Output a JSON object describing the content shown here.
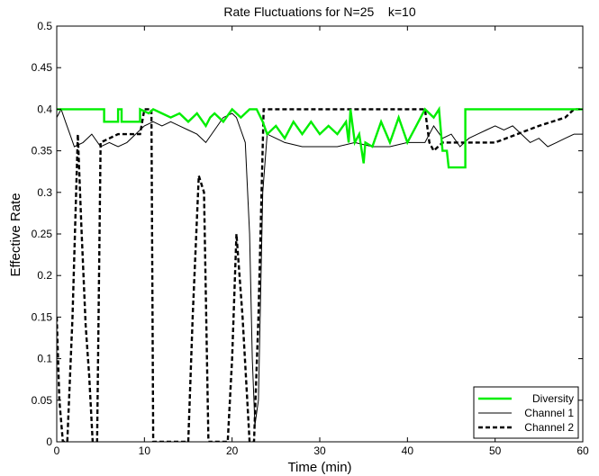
{
  "chart_data": {
    "type": "line",
    "title": "Rate Fluctuations for N=25    k=10",
    "xlabel": "Time (min)",
    "ylabel": "Effective Rate",
    "xlim": [
      0,
      60
    ],
    "ylim": [
      0,
      0.5
    ],
    "xticks": [
      0,
      10,
      20,
      30,
      40,
      50,
      60
    ],
    "xtick_labels": [
      "0",
      "10",
      "20",
      "30",
      "40",
      "50",
      "60"
    ],
    "yticks": [
      0,
      0.05,
      0.1,
      0.15,
      0.2,
      0.25,
      0.3,
      0.35,
      0.4,
      0.45,
      0.5
    ],
    "ytick_labels": [
      "0",
      "0.05",
      "0.1",
      "0.15",
      "0.2",
      "0.25",
      "0.3",
      "0.35",
      "0.4",
      "0.45",
      "0.5"
    ],
    "grid": false,
    "legend_position": "bottom-right",
    "series": [
      {
        "name": "Diversity",
        "color": "#00ee00",
        "style": "solid",
        "width": "thick",
        "x": [
          0,
          5.4,
          5.4,
          7,
          7,
          7.4,
          7.4,
          9.5,
          9.5,
          10.5,
          11,
          12,
          13,
          14,
          15,
          16,
          17,
          17.5,
          18,
          19,
          20,
          21,
          22,
          22.8,
          23.5,
          24,
          25,
          26,
          27,
          28,
          29,
          30,
          31,
          32,
          33,
          33.3,
          33.5,
          34,
          34.5,
          35,
          35.2,
          36,
          37,
          38,
          39,
          40,
          41,
          42,
          43,
          43.6,
          44,
          44.5,
          44.7,
          46.6,
          46.6,
          47,
          50,
          55,
          60
        ],
        "y": [
          0.4,
          0.4,
          0.385,
          0.385,
          0.4,
          0.4,
          0.385,
          0.385,
          0.4,
          0.395,
          0.4,
          0.395,
          0.39,
          0.395,
          0.385,
          0.395,
          0.38,
          0.39,
          0.395,
          0.385,
          0.4,
          0.39,
          0.4,
          0.4,
          0.385,
          0.37,
          0.38,
          0.365,
          0.385,
          0.37,
          0.385,
          0.37,
          0.38,
          0.37,
          0.385,
          0.36,
          0.4,
          0.36,
          0.37,
          0.335,
          0.36,
          0.355,
          0.385,
          0.36,
          0.39,
          0.36,
          0.38,
          0.4,
          0.39,
          0.4,
          0.35,
          0.35,
          0.33,
          0.33,
          0.4,
          0.4,
          0.4,
          0.4,
          0.4
        ]
      },
      {
        "name": "Channel 1",
        "color": "#000000",
        "style": "solid",
        "width": "thin",
        "x": [
          0,
          0.5,
          1,
          1.5,
          2,
          3,
          4,
          5,
          6,
          7,
          8,
          9,
          10,
          11,
          12,
          13,
          14,
          15,
          16,
          17,
          18,
          19,
          20,
          20.5,
          21,
          21.5,
          22,
          22.3,
          22.6,
          23,
          23.5,
          24,
          25,
          26,
          28,
          30,
          32,
          34,
          36,
          38,
          40,
          42,
          43,
          44,
          45,
          46,
          47,
          48,
          49,
          50,
          51,
          52,
          53,
          54,
          55,
          56,
          57,
          58,
          59,
          60
        ],
        "y": [
          0.39,
          0.4,
          0.385,
          0.37,
          0.355,
          0.36,
          0.37,
          0.355,
          0.36,
          0.355,
          0.36,
          0.37,
          0.38,
          0.385,
          0.38,
          0.385,
          0.38,
          0.375,
          0.37,
          0.36,
          0.375,
          0.39,
          0.395,
          0.39,
          0.375,
          0.36,
          0.25,
          0.1,
          0.02,
          0.05,
          0.3,
          0.37,
          0.365,
          0.36,
          0.355,
          0.355,
          0.355,
          0.36,
          0.355,
          0.355,
          0.36,
          0.36,
          0.38,
          0.365,
          0.37,
          0.355,
          0.365,
          0.37,
          0.375,
          0.38,
          0.375,
          0.38,
          0.37,
          0.36,
          0.365,
          0.355,
          0.36,
          0.365,
          0.37,
          0.37
        ]
      },
      {
        "name": "Channel 2",
        "color": "#000000",
        "style": "dashed",
        "width": "thick",
        "x": [
          0,
          0.3,
          0.7,
          1.2,
          1.8,
          2.4,
          2.8,
          3.3,
          3.7,
          4.1,
          4.6,
          5,
          7,
          9.5,
          10,
          10.8,
          11,
          15,
          15.5,
          16.2,
          16.8,
          17.3,
          18,
          19.5,
          20,
          20.5,
          21.2,
          22,
          22.5,
          23,
          23.6,
          24,
          30,
          35,
          40,
          42,
          42.5,
          43,
          44,
          47,
          50,
          55,
          58,
          59,
          60
        ],
        "y": [
          0.15,
          0.05,
          0,
          0,
          0.15,
          0.37,
          0.26,
          0.14,
          0.08,
          0,
          0,
          0.36,
          0.37,
          0.37,
          0.4,
          0.4,
          0,
          0,
          0.15,
          0.32,
          0.3,
          0,
          0,
          0,
          0.1,
          0.25,
          0.15,
          0,
          0,
          0.15,
          0.4,
          0.4,
          0.4,
          0.4,
          0.4,
          0.4,
          0.36,
          0.35,
          0.36,
          0.36,
          0.36,
          0.38,
          0.39,
          0.4,
          0.4
        ]
      }
    ]
  }
}
